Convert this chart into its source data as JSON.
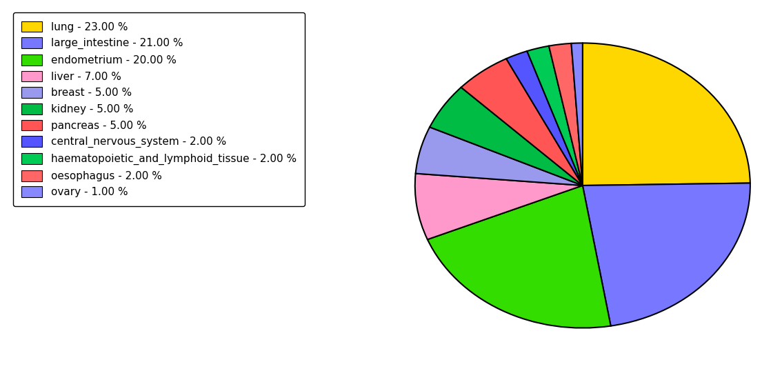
{
  "labels": [
    "lung",
    "large_intestine",
    "endometrium",
    "liver",
    "breast",
    "kidney",
    "pancreas",
    "central_nervous_system",
    "haematopoietic_and_lymphoid_tissue",
    "oesophagus",
    "ovary"
  ],
  "values": [
    23,
    21,
    20,
    7,
    5,
    5,
    5,
    2,
    2,
    2,
    1
  ],
  "colors": [
    "#FFD700",
    "#7777FF",
    "#33DD00",
    "#FF99CC",
    "#9999EE",
    "#00BB44",
    "#FF5555",
    "#5555FF",
    "#00CC55",
    "#FF6666",
    "#8888FF"
  ],
  "legend_labels": [
    "lung - 23.00 %",
    "large_intestine - 21.00 %",
    "endometrium - 20.00 %",
    "liver - 7.00 %",
    "breast - 5.00 %",
    "kidney - 5.00 %",
    "pancreas - 5.00 %",
    "central_nervous_system - 2.00 %",
    "haematopoietic_and_lymphoid_tissue - 2.00 %",
    "oesophagus - 2.00 %",
    "ovary - 1.00 %"
  ],
  "startangle": 90,
  "legend_fontsize": 11,
  "figsize": [
    11.34,
    5.38
  ],
  "dpi": 100
}
